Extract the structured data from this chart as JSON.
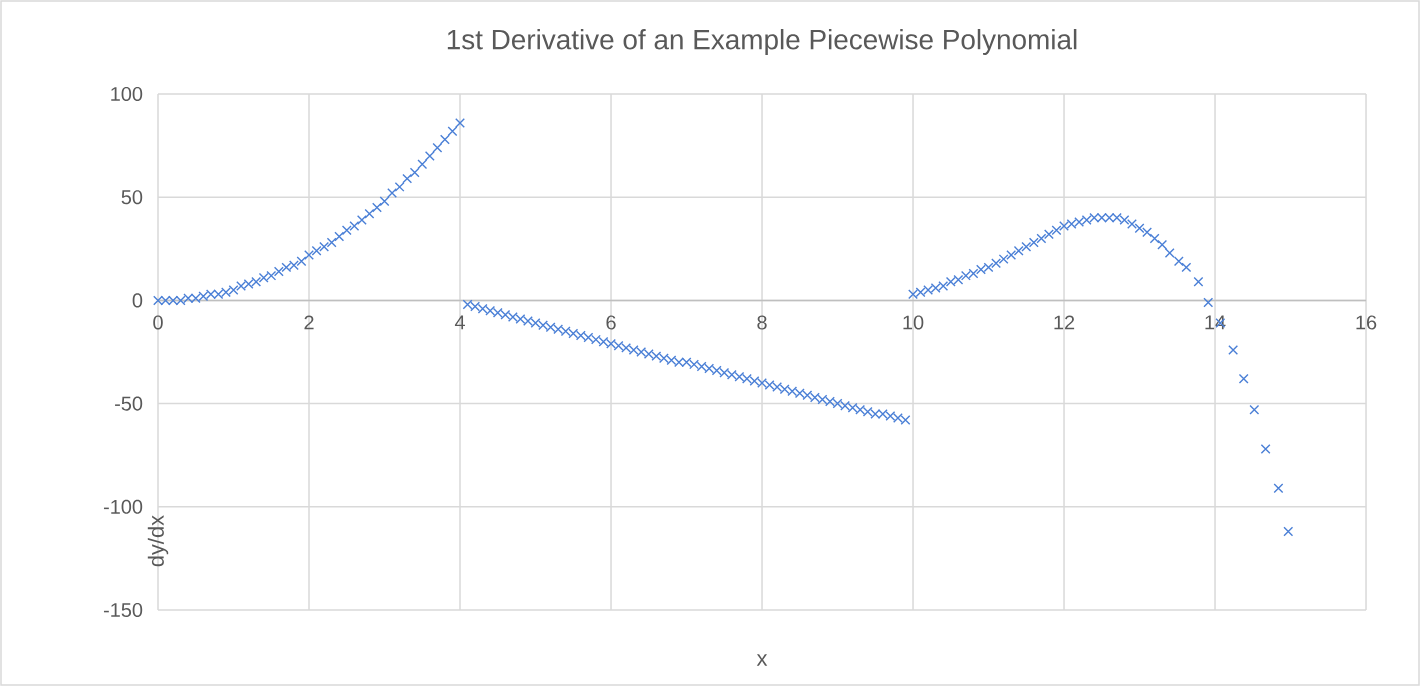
{
  "chart_data": {
    "type": "scatter",
    "title": "1st Derivative of an Example Piecewise Polynomial",
    "xlabel": "x",
    "ylabel": "dy/dx",
    "xlim": [
      0,
      16
    ],
    "xticks": [
      0,
      2,
      4,
      6,
      8,
      10,
      12,
      14,
      16
    ],
    "ylim": [
      -150,
      100
    ],
    "yticks": [
      -150,
      -100,
      -50,
      0,
      50,
      100
    ],
    "grid": true,
    "marker": "cross",
    "series": [
      {
        "color": "#4a7fd6",
        "x": [
          0,
          0.1,
          0.2,
          0.3,
          0.4,
          0.5,
          0.6,
          0.7,
          0.8,
          0.9,
          1.0,
          1.1,
          1.2,
          1.3,
          1.4,
          1.5,
          1.6,
          1.7,
          1.8,
          1.9,
          2.0,
          2.1,
          2.2,
          2.3,
          2.4,
          2.5,
          2.6,
          2.7,
          2.8,
          2.9,
          3.0,
          3.1,
          3.2,
          3.3,
          3.4,
          3.5,
          3.6,
          3.7,
          3.8,
          3.9,
          4.0,
          4.1,
          4.2,
          4.3,
          4.4,
          4.5,
          4.6,
          4.7,
          4.8,
          4.9,
          5.0,
          5.1,
          5.2,
          5.3,
          5.4,
          5.5,
          5.6,
          5.7,
          5.8,
          5.9,
          6.0,
          6.1,
          6.2,
          6.3,
          6.4,
          6.5,
          6.6,
          6.7,
          6.8,
          6.9,
          7.0,
          7.1,
          7.2,
          7.3,
          7.4,
          7.5,
          7.6,
          7.7,
          7.8,
          7.9,
          8.0,
          8.1,
          8.2,
          8.3,
          8.4,
          8.5,
          8.6,
          8.7,
          8.8,
          8.9,
          9.0,
          9.1,
          9.2,
          9.3,
          9.4,
          9.5,
          9.6,
          9.7,
          9.8,
          9.9,
          10.0,
          10.1,
          10.2,
          10.3,
          10.4,
          10.5,
          10.6,
          10.7,
          10.8,
          10.9,
          11.0,
          11.1,
          11.2,
          11.3,
          11.4,
          11.5,
          11.6,
          11.7,
          11.8,
          11.9,
          12.0,
          12.1,
          12.2,
          12.3,
          12.4,
          12.5,
          12.6,
          12.7,
          12.8,
          12.9,
          13.0,
          13.1,
          13.2,
          13.3,
          13.4,
          13.52,
          13.62,
          13.78,
          13.91,
          14.07,
          14.24,
          14.38,
          14.52,
          14.67,
          14.84,
          14.97
        ],
        "values": [
          0,
          0,
          0,
          0,
          1,
          1,
          2,
          3,
          3,
          4,
          5,
          7,
          8,
          9,
          11,
          12,
          14,
          16,
          17,
          19,
          22,
          24,
          26,
          28,
          31,
          34,
          36,
          39,
          42,
          45,
          48,
          52,
          55,
          59,
          62,
          66,
          70,
          74,
          78,
          82,
          86,
          -2,
          -3,
          -4,
          -5,
          -6,
          -7,
          -8,
          -9,
          -10,
          -11,
          -12,
          -13,
          -14,
          -15,
          -16,
          -17,
          -18,
          -19,
          -20,
          -21,
          -22,
          -23,
          -24,
          -25,
          -26,
          -27,
          -28,
          -29,
          -30,
          -30,
          -31,
          -32,
          -33,
          -34,
          -35,
          -36,
          -37,
          -38,
          -39,
          -40,
          -41,
          -42,
          -43,
          -44,
          -45,
          -46,
          -47,
          -48,
          -49,
          -50,
          -51,
          -52,
          -53,
          -54,
          -55,
          -55,
          -56,
          -57,
          -58,
          3,
          4,
          5,
          6,
          7,
          9,
          10,
          12,
          13,
          15,
          16,
          18,
          20,
          22,
          24,
          26,
          28,
          30,
          32,
          34,
          36,
          37,
          38,
          39,
          40,
          40,
          40,
          40,
          39,
          37,
          35,
          33,
          30,
          27,
          23,
          19,
          16,
          9,
          -1,
          -11,
          -24,
          -38,
          -53,
          -72,
          -91,
          -112
        ]
      }
    ]
  }
}
